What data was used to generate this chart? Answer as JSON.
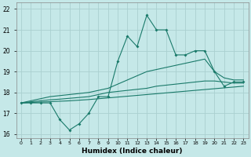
{
  "xlabel": "Humidex (Indice chaleur)",
  "background_color": "#c5e8e8",
  "grid_color": "#aad0d0",
  "line_color": "#1a7a6a",
  "x": [
    0,
    1,
    2,
    3,
    4,
    5,
    6,
    7,
    8,
    9,
    10,
    11,
    12,
    13,
    14,
    15,
    16,
    17,
    18,
    19,
    20,
    21,
    22,
    23
  ],
  "y_main": [
    17.5,
    17.5,
    17.5,
    17.5,
    16.7,
    16.2,
    16.5,
    17.0,
    17.8,
    17.8,
    19.5,
    20.7,
    20.2,
    21.7,
    21.0,
    21.0,
    19.8,
    19.8,
    20.0,
    20.0,
    19.0,
    18.3,
    18.5,
    18.5
  ],
  "y_upper": [
    17.5,
    17.6,
    17.7,
    17.8,
    17.85,
    17.9,
    17.95,
    18.0,
    18.1,
    18.2,
    18.4,
    18.6,
    18.8,
    19.0,
    19.1,
    19.2,
    19.3,
    19.4,
    19.5,
    19.6,
    19.0,
    18.7,
    18.6,
    18.6
  ],
  "y_mid": [
    17.5,
    17.55,
    17.6,
    17.65,
    17.68,
    17.72,
    17.76,
    17.8,
    17.9,
    18.0,
    18.05,
    18.1,
    18.15,
    18.2,
    18.3,
    18.35,
    18.4,
    18.45,
    18.5,
    18.55,
    18.55,
    18.5,
    18.45,
    18.45
  ],
  "y_lower": [
    17.5,
    17.52,
    17.54,
    17.56,
    17.58,
    17.6,
    17.63,
    17.66,
    17.7,
    17.74,
    17.78,
    17.82,
    17.86,
    17.9,
    17.94,
    17.98,
    18.02,
    18.06,
    18.1,
    18.14,
    18.18,
    18.22,
    18.26,
    18.3
  ],
  "ylim": [
    15.8,
    22.3
  ],
  "yticks": [
    16,
    17,
    18,
    19,
    20,
    21,
    22
  ],
  "xlim": [
    -0.5,
    23.5
  ]
}
